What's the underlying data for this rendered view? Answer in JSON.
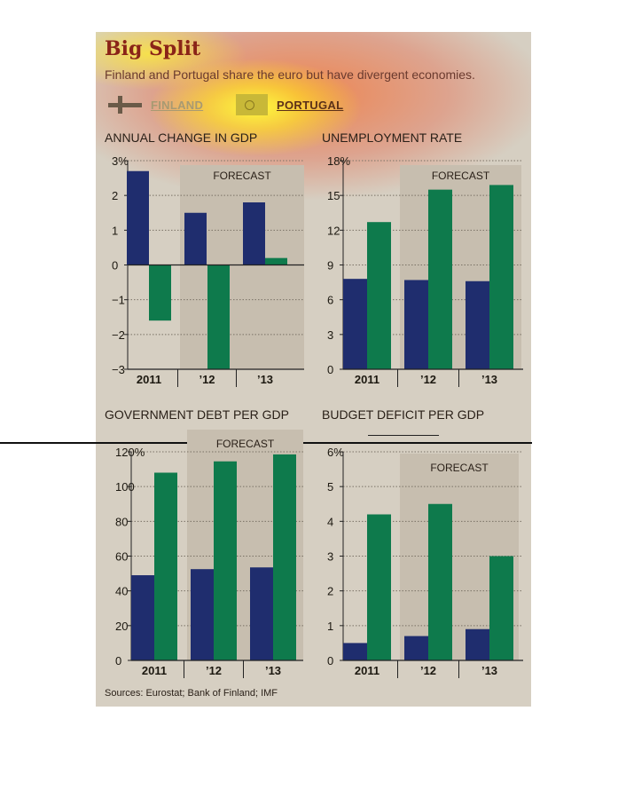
{
  "header": {
    "title": "Big Split",
    "subtitle": "Finland and Portugal share the euro but have divergent economies."
  },
  "legend": {
    "finland": "FINLAND",
    "portugal": "PORTUGAL"
  },
  "colors": {
    "finland": "#1f2d6e",
    "portugal": "#0e7a4c",
    "forecast_band": "#c7beaf",
    "background": "#d6cfc2"
  },
  "forecast_label": "FORECAST",
  "sources": "Sources: Eurostat; Bank of Finland; IMF",
  "chart_data": [
    {
      "type": "bar",
      "title": "ANNUAL CHANGE IN GDP",
      "categories": [
        "2011",
        "’12",
        "’13"
      ],
      "series": [
        {
          "name": "FINLAND",
          "values": [
            2.7,
            1.5,
            1.8
          ]
        },
        {
          "name": "PORTUGAL",
          "values": [
            -1.6,
            -3.0,
            0.2
          ]
        }
      ],
      "ylim": [
        -3,
        3
      ],
      "yticks": [
        3,
        2,
        1,
        0,
        -1,
        -2,
        -3
      ],
      "ytick_labels": [
        "3%",
        "2",
        "1",
        "0",
        "−1",
        "−2",
        "−3"
      ],
      "forecast_categories": [
        "’12",
        "’13"
      ]
    },
    {
      "type": "bar",
      "title": "UNEMPLOYMENT RATE",
      "categories": [
        "2011",
        "’12",
        "’13"
      ],
      "series": [
        {
          "name": "FINLAND",
          "values": [
            7.8,
            7.7,
            7.6
          ]
        },
        {
          "name": "PORTUGAL",
          "values": [
            12.7,
            15.5,
            15.9
          ]
        }
      ],
      "ylim": [
        0,
        18
      ],
      "yticks": [
        18,
        15,
        12,
        9,
        6,
        3,
        0
      ],
      "ytick_labels": [
        "18%",
        "15",
        "12",
        "9",
        "6",
        "3",
        "0"
      ],
      "forecast_categories": [
        "’12",
        "’13"
      ]
    },
    {
      "type": "bar",
      "title": "GOVERNMENT DEBT PER GDP",
      "categories": [
        "2011",
        "’12",
        "’13"
      ],
      "series": [
        {
          "name": "FINLAND",
          "values": [
            49,
            52.5,
            53.5
          ]
        },
        {
          "name": "PORTUGAL",
          "values": [
            108,
            114.5,
            118.5
          ]
        }
      ],
      "ylim": [
        0,
        120
      ],
      "yticks": [
        120,
        100,
        80,
        60,
        40,
        20,
        0
      ],
      "ytick_labels": [
        "120%",
        "100",
        "80",
        "60",
        "40",
        "20",
        "0"
      ],
      "forecast_categories": [
        "’12",
        "’13"
      ]
    },
    {
      "type": "bar",
      "title": "BUDGET DEFICIT PER GDP",
      "categories": [
        "2011",
        "’12",
        "’13"
      ],
      "series": [
        {
          "name": "FINLAND",
          "values": [
            0.5,
            0.7,
            0.9
          ]
        },
        {
          "name": "PORTUGAL",
          "values": [
            4.2,
            4.5,
            3.0
          ]
        }
      ],
      "ylim": [
        0,
        6
      ],
      "yticks": [
        6,
        5,
        4,
        3,
        2,
        1,
        0
      ],
      "ytick_labels": [
        "6%",
        "5",
        "4",
        "3",
        "2",
        "1",
        "0"
      ],
      "forecast_categories": [
        "’12",
        "’13"
      ]
    }
  ]
}
